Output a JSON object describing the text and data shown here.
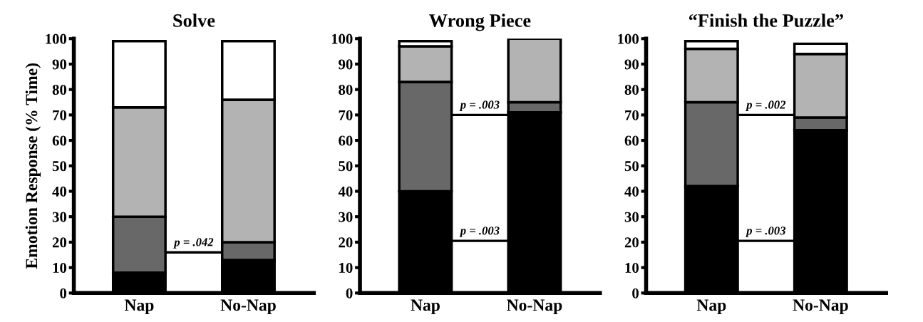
{
  "chart_data": [
    {
      "type": "bar",
      "title": "Solve",
      "ylabel": "Emotion Response (% Time)",
      "categories": [
        "Nap",
        "No-Nap"
      ],
      "stacked": true,
      "ylim": [
        0,
        100
      ],
      "yticks": [
        0,
        10,
        20,
        30,
        40,
        50,
        60,
        70,
        80,
        90,
        100
      ],
      "grid": false,
      "series": [
        {
          "color": "#000000",
          "values": [
            8,
            13
          ]
        },
        {
          "color": "#686868",
          "values": [
            22,
            7
          ]
        },
        {
          "color": "#b3b3b3",
          "values": [
            43,
            56
          ]
        },
        {
          "color": "#ffffff",
          "values": [
            26,
            23
          ]
        }
      ],
      "annotations": [
        "p = .042"
      ]
    },
    {
      "type": "bar",
      "title": "Wrong Piece",
      "categories": [
        "Nap",
        "No-Nap"
      ],
      "stacked": true,
      "ylim": [
        0,
        100
      ],
      "yticks": [
        0,
        10,
        20,
        30,
        40,
        50,
        60,
        70,
        80,
        90,
        100
      ],
      "grid": false,
      "series": [
        {
          "color": "#000000",
          "values": [
            40,
            71
          ]
        },
        {
          "color": "#686868",
          "values": [
            43,
            4
          ]
        },
        {
          "color": "#b3b3b3",
          "values": [
            14,
            25
          ]
        },
        {
          "color": "#ffffff",
          "values": [
            2,
            null
          ]
        }
      ],
      "annotations": [
        "p = .003",
        "p = .003"
      ]
    },
    {
      "type": "bar",
      "title": "“Finish the Puzzle”",
      "categories": [
        "Nap",
        "No-Nap"
      ],
      "stacked": true,
      "ylim": [
        0,
        100
      ],
      "yticks": [
        0,
        10,
        20,
        30,
        40,
        50,
        60,
        70,
        80,
        90,
        100
      ],
      "grid": false,
      "series": [
        {
          "color": "#000000",
          "values": [
            42,
            64
          ]
        },
        {
          "color": "#686868",
          "values": [
            33,
            5
          ]
        },
        {
          "color": "#b3b3b3",
          "values": [
            21,
            25
          ]
        },
        {
          "color": "#ffffff",
          "values": [
            3,
            4
          ]
        }
      ],
      "annotations": [
        "p = .002",
        "p = .003"
      ]
    }
  ]
}
